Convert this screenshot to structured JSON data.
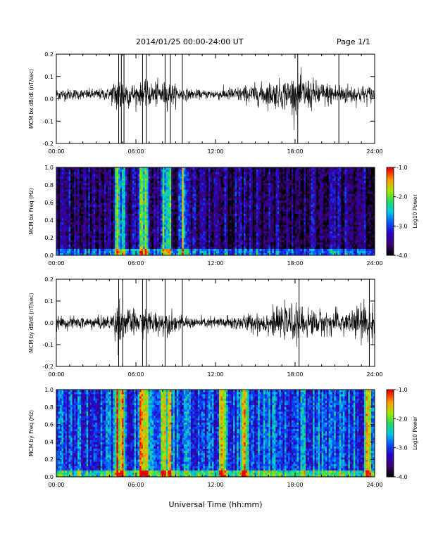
{
  "header": {
    "date_range": "2014/01/25  00:00-24:00 UT",
    "page": "Page 1/1"
  },
  "xlabel": "Universal Time (hh:mm)",
  "chart_data": [
    {
      "type": "line",
      "ylabel": "MCM bx dB/dt (nT/sec)",
      "ylim": [
        -0.2,
        0.2
      ],
      "y_ticks": [
        "-0.2",
        "-0.1",
        "0.0",
        "0.1",
        "0.2"
      ],
      "x_ticks": [
        "00:00",
        "06:00",
        "12:00",
        "18:00",
        "24:00"
      ],
      "xlim_hours": [
        0,
        24
      ],
      "baseline": 0.02,
      "envelope_hours": [
        0,
        2,
        4,
        4.8,
        5,
        6,
        7,
        8.5,
        9.5,
        11,
        12,
        14,
        15,
        16,
        17,
        18,
        19,
        20,
        22,
        24
      ],
      "envelope_amplitude": [
        0.03,
        0.025,
        0.03,
        0.12,
        0.08,
        0.05,
        0.06,
        0.06,
        0.03,
        0.02,
        0.025,
        0.04,
        0.05,
        0.06,
        0.07,
        0.09,
        0.08,
        0.06,
        0.05,
        0.04
      ],
      "spikes_hours": [
        4.7,
        4.9,
        5.1,
        6.5,
        6.8,
        8.2,
        8.6,
        9.5,
        18.2,
        21.3
      ]
    },
    {
      "type": "heatmap",
      "ylabel": "MCM bx Freq (Hz)",
      "ylim": [
        0.0,
        1.0
      ],
      "y_ticks": [
        "0.0",
        "0.2",
        "0.4",
        "0.6",
        "0.8",
        "1.0"
      ],
      "x_ticks": [
        "00:00",
        "06:00",
        "12:00",
        "18:00",
        "24:00"
      ],
      "colorbar": {
        "label": "Log10 Power",
        "range": [
          -4.0,
          -1.0
        ],
        "ticks": [
          "-1.0",
          "-2.0",
          "-3.0",
          "-4.0"
        ]
      },
      "bright_bands_hours": [
        4.6,
        5.0,
        6.4,
        6.7,
        8.1,
        8.5,
        9.5
      ],
      "background_level": -3.6
    },
    {
      "type": "line",
      "ylabel": "MCM by dB/dt (nT/sec)",
      "ylim": [
        -0.2,
        0.2
      ],
      "y_ticks": [
        "-0.2",
        "-0.1",
        "0.0",
        "0.1",
        "0.2"
      ],
      "x_ticks": [
        "00:00",
        "06:00",
        "12:00",
        "18:00",
        "24:00"
      ],
      "xlim_hours": [
        0,
        24
      ],
      "baseline": 0.0,
      "envelope_hours": [
        0,
        2,
        4,
        4.8,
        5,
        6,
        7,
        8.5,
        9.5,
        11,
        12,
        14,
        15,
        16,
        17,
        18,
        19,
        20,
        22,
        23.5,
        24
      ],
      "envelope_amplitude": [
        0.03,
        0.03,
        0.035,
        0.12,
        0.08,
        0.06,
        0.06,
        0.06,
        0.03,
        0.025,
        0.03,
        0.04,
        0.05,
        0.06,
        0.07,
        0.09,
        0.07,
        0.06,
        0.06,
        0.12,
        0.06
      ],
      "spikes_hours": [
        4.7,
        5.0,
        6.5,
        6.8,
        8.2,
        9.5,
        18.3,
        23.6
      ]
    },
    {
      "type": "heatmap",
      "ylabel": "MCM by Freq (Hz)",
      "ylim": [
        0.0,
        1.0
      ],
      "y_ticks": [
        "0.0",
        "0.2",
        "0.4",
        "0.6",
        "0.8",
        "1.0"
      ],
      "x_ticks": [
        "00:00",
        "06:00",
        "12:00",
        "18:00",
        "24:00"
      ],
      "colorbar": {
        "label": "Log10 Power",
        "range": [
          -4.0,
          -1.0
        ],
        "ticks": [
          "-1.0",
          "-2.0",
          "-3.0",
          "-4.0"
        ]
      },
      "bright_bands_hours": [
        4.6,
        5.0,
        6.4,
        6.7,
        8.1,
        8.5,
        12.5,
        14.2,
        23.5
      ],
      "background_level": -2.9
    }
  ],
  "colors": {
    "trace": "#000000",
    "frame": "#000000"
  }
}
